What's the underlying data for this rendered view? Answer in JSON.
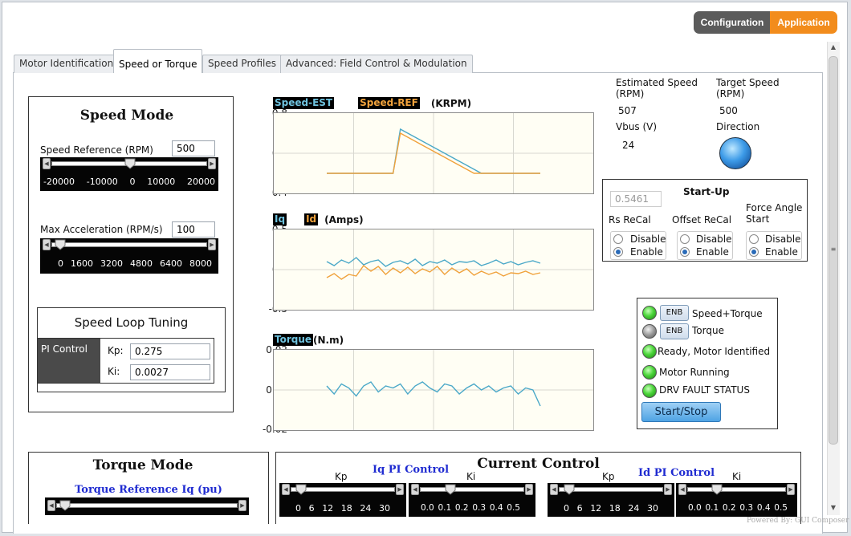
{
  "header": {
    "config_label": "Configuration",
    "app_label": "Application"
  },
  "tabs": [
    {
      "label": "Motor Identification"
    },
    {
      "label": "Speed or Torque"
    },
    {
      "label": "Speed Profiles"
    },
    {
      "label": "Advanced: Field Control & Modulation"
    }
  ],
  "speed_mode": {
    "title": "Speed Mode",
    "ref_label": "Speed Reference (RPM)",
    "ref_value": "500",
    "ref_ticks": [
      "-20000",
      "-10000",
      "0",
      "10000",
      "20000"
    ],
    "acc_label": "Max Acceleration (RPM/s)",
    "acc_value": "100",
    "acc_ticks": [
      "0",
      "1600",
      "3200",
      "4800",
      "6400",
      "8000"
    ],
    "tuning_title": "Speed Loop Tuning",
    "pi_label": "PI Control",
    "kp_label": "Kp:",
    "kp_value": "0.275",
    "ki_label": "Ki:",
    "ki_value": "0.0027"
  },
  "charts": {
    "speed": {
      "tag1": "Speed-EST",
      "tag2": "Speed-REF",
      "unit": "(KRPM)",
      "yticks": [
        "0.8",
        "0.6",
        "0.4"
      ]
    },
    "current": {
      "tag1": "Iq",
      "tag2": "Id",
      "unit": "(Amps)",
      "yticks": [
        "0.5",
        "0.0",
        "-0.5"
      ]
    },
    "torque": {
      "tag1": "Torque",
      "unit": "(N.m)",
      "yticks": [
        "0.02",
        "0.00",
        "-0.02"
      ]
    }
  },
  "chart_data": [
    {
      "type": "line",
      "ylim": [
        0.4,
        0.8
      ],
      "series": [
        {
          "name": "Speed-EST",
          "color": "#4aa8c8",
          "values": [
            0.5,
            0.5,
            0.5,
            0.5,
            0.5,
            0.5,
            0.5,
            0.5,
            0.5,
            0.5,
            0.72,
            0.7,
            0.68,
            0.66,
            0.64,
            0.62,
            0.6,
            0.58,
            0.56,
            0.54,
            0.52,
            0.5,
            0.5,
            0.5,
            0.5,
            0.5,
            0.5,
            0.5,
            0.5,
            0.5
          ]
        },
        {
          "name": "Speed-REF",
          "color": "#f0a23c",
          "values": [
            0.5,
            0.5,
            0.5,
            0.5,
            0.5,
            0.5,
            0.5,
            0.5,
            0.5,
            0.5,
            0.7,
            0.68,
            0.66,
            0.64,
            0.62,
            0.6,
            0.58,
            0.56,
            0.54,
            0.52,
            0.5,
            0.5,
            0.5,
            0.5,
            0.5,
            0.5,
            0.5,
            0.5,
            0.5,
            0.5
          ]
        }
      ]
    },
    {
      "type": "line",
      "ylim": [
        -0.5,
        0.5
      ],
      "series": [
        {
          "name": "Iq",
          "color": "#4aa8c8",
          "values": [
            0.1,
            0.05,
            0.12,
            0.08,
            0.15,
            0.06,
            0.1,
            0.12,
            0.04,
            0.09,
            0.11,
            0.07,
            0.13,
            0.05,
            0.1,
            0.08,
            0.12,
            0.06,
            0.1,
            0.09,
            0.11,
            0.05,
            0.08,
            0.12,
            0.07,
            0.1,
            0.06,
            0.09,
            0.11,
            0.08
          ]
        },
        {
          "name": "Id",
          "color": "#f0a23c",
          "values": [
            -0.1,
            -0.05,
            -0.12,
            -0.06,
            -0.08,
            0.05,
            -0.02,
            0.04,
            -0.06,
            0.02,
            -0.04,
            0.03,
            -0.05,
            0.01,
            -0.03,
            0.04,
            -0.06,
            0.02,
            -0.04,
            0.01,
            -0.07,
            -0.02,
            -0.06,
            -0.03,
            -0.08,
            -0.04,
            -0.05,
            -0.02,
            -0.06,
            -0.04
          ]
        }
      ]
    },
    {
      "type": "line",
      "ylim": [
        -0.02,
        0.02
      ],
      "series": [
        {
          "name": "Torque",
          "color": "#4aa8c8",
          "values": [
            0.002,
            -0.002,
            0.003,
            0.001,
            -0.003,
            0.002,
            0.004,
            -0.001,
            0.002,
            0.001,
            0.003,
            -0.002,
            0.002,
            0.004,
            0.001,
            -0.001,
            0.003,
            0.002,
            -0.002,
            0.001,
            0.003,
            0.0,
            0.002,
            -0.001,
            0.001,
            0.002,
            -0.002,
            0.001,
            0.0,
            -0.008
          ]
        }
      ]
    }
  ],
  "status": {
    "est_speed_label": "Estimated Speed (RPM)",
    "est_speed_value": "507",
    "target_speed_label": "Target Speed (RPM)",
    "target_speed_value": "500",
    "vbus_label": "Vbus (V)",
    "vbus_value": "24",
    "direction_label": "Direction"
  },
  "startup": {
    "title": "Start-Up",
    "value": "0.5461",
    "rs_label": "Rs ReCal",
    "offset_label": "Offset ReCal",
    "force_label": "Force Angle Start",
    "disable": "Disable",
    "enable": "Enable"
  },
  "flags": {
    "enb": "ENB",
    "speed_torque": "Speed+Torque",
    "torque": "Torque",
    "ready": "Ready, Motor Identified",
    "running": "Motor Running",
    "fault": "DRV FAULT STATUS",
    "start_stop": "Start/Stop"
  },
  "torque_mode": {
    "title": "Torque Mode",
    "ref_label": "Torque Reference Iq (pu)"
  },
  "current_control": {
    "title": "Current Control",
    "iq_title": "Iq PI Control",
    "id_title": "Id PI Control",
    "kp": "Kp",
    "ki": "Ki",
    "kp_ticks": [
      "0",
      "6",
      "12",
      "18",
      "24",
      "30"
    ],
    "ki_ticks": [
      "0.0",
      "0.1",
      "0.2",
      "0.3",
      "0.4",
      "0.5"
    ]
  },
  "footer": {
    "powered": "Powered By: GUI Composer"
  }
}
